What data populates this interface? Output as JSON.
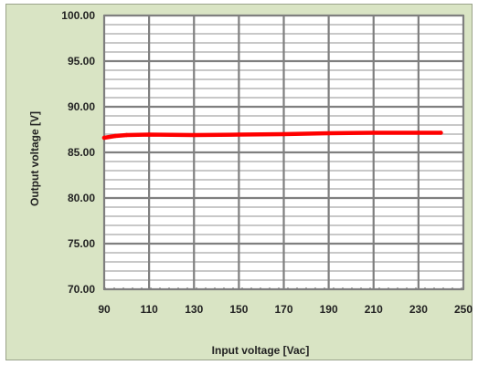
{
  "chart_data": {
    "type": "line",
    "title": "",
    "xlabel": "Input voltage [Vac]",
    "ylabel": "Output voltage [V]",
    "xlim": [
      90,
      250
    ],
    "ylim": [
      70,
      100
    ],
    "x_ticks": [
      90,
      110,
      130,
      150,
      170,
      190,
      210,
      230,
      250
    ],
    "y_ticks": [
      "70.00",
      "75.00",
      "80.00",
      "85.00",
      "90.00",
      "95.00",
      "100.00"
    ],
    "y_minor_step": 1,
    "grid": true,
    "legend": "none",
    "series": [
      {
        "color": "#ff0000",
        "x": [
          90,
          95,
          100,
          110,
          130,
          150,
          170,
          190,
          210,
          230,
          240
        ],
        "y": [
          86.6,
          86.8,
          86.9,
          86.95,
          86.9,
          86.95,
          87.0,
          87.1,
          87.15,
          87.15,
          87.15
        ]
      }
    ]
  },
  "colors": {
    "background": "#d9e4c4",
    "plot_area": "#ffffff",
    "grid": "#a6a6a6",
    "frame": "#7f7f7f",
    "series": "#ff0000"
  }
}
